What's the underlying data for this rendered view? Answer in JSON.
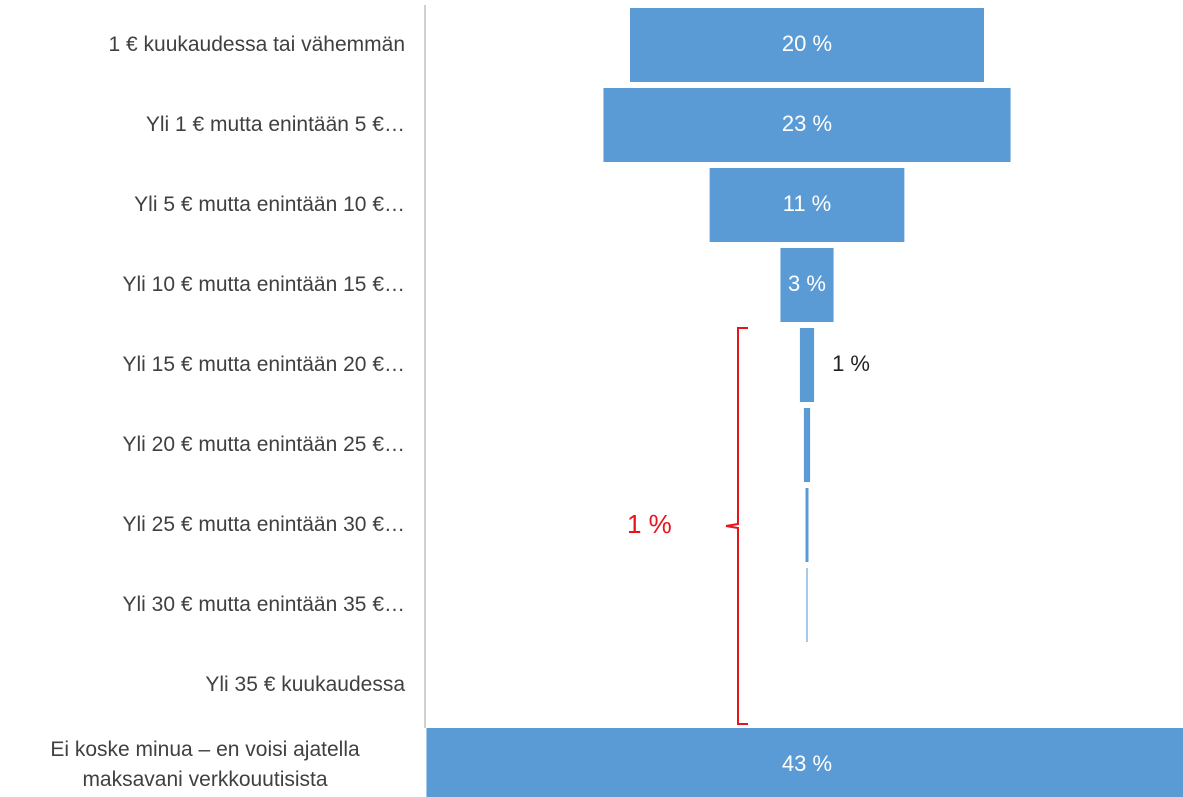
{
  "chart_data": {
    "type": "funnel",
    "categories": [
      "1 € kuukaudessa tai vähemmän",
      "Yli 1 € mutta enintään 5 €…",
      "Yli 5 € mutta enintään 10 €…",
      "Yli 10 € mutta enintään 15 €…",
      "Yli 15 € mutta enintään 20 €…",
      "Yli 20 € mutta enintään 25 €…",
      "Yli 25 € mutta enintään 30 €…",
      "Yli 30 € mutta enintään 35 €…",
      "Yli 35 € kuukaudessa",
      "Ei koske minua – en voisi ajatella maksavani verkkouutisista"
    ],
    "values": [
      20,
      23,
      11,
      3,
      0.8,
      0.35,
      0.17,
      0.06,
      0,
      43
    ],
    "value_labels": [
      "20 %",
      "23 %",
      "11 %",
      "3 %",
      "1 %",
      null,
      null,
      null,
      null,
      "43 %"
    ],
    "color": "#5b9bd5",
    "annotation": {
      "text": "1 %",
      "color": "#e8141b"
    }
  }
}
